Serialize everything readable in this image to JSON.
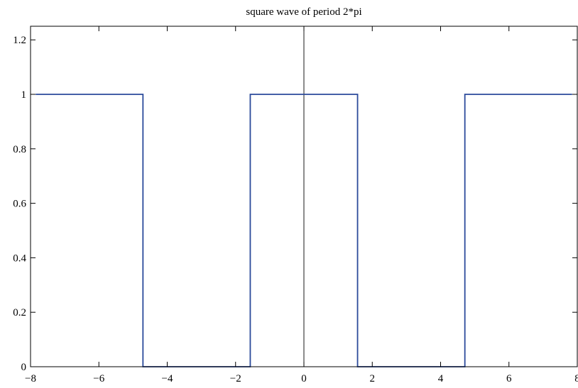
{
  "chart_data": {
    "type": "line",
    "title": "square wave of period 2*pi",
    "xlabel": "",
    "ylabel": "",
    "xlim": [
      -8,
      8
    ],
    "ylim": [
      0,
      1.25
    ],
    "x_ticks": [
      -8,
      -6,
      -4,
      -2,
      0,
      2,
      4,
      6,
      8
    ],
    "x_tick_labels": [
      "−8",
      "−6",
      "−4",
      "−2",
      "0",
      "2",
      "4",
      "6",
      "8"
    ],
    "y_ticks": [
      0,
      0.2,
      0.4,
      0.6,
      0.8,
      1,
      1.2
    ],
    "y_tick_labels": [
      "0",
      "0.2",
      "0.4",
      "0.6",
      "0.8",
      "1",
      "1.2"
    ],
    "grid": false,
    "legend": "none",
    "series": [
      {
        "color": "#2b4a9b",
        "x": [
          -7.85,
          -4.71,
          -4.71,
          -1.57,
          -1.57,
          1.57,
          1.57,
          4.71,
          4.71,
          7.85
        ],
        "y": [
          1,
          1,
          0,
          0,
          1,
          1,
          0,
          0,
          1,
          1
        ]
      }
    ],
    "reference_lines": [
      {
        "orientation": "vertical",
        "x": 0,
        "color": "#000000"
      }
    ]
  }
}
